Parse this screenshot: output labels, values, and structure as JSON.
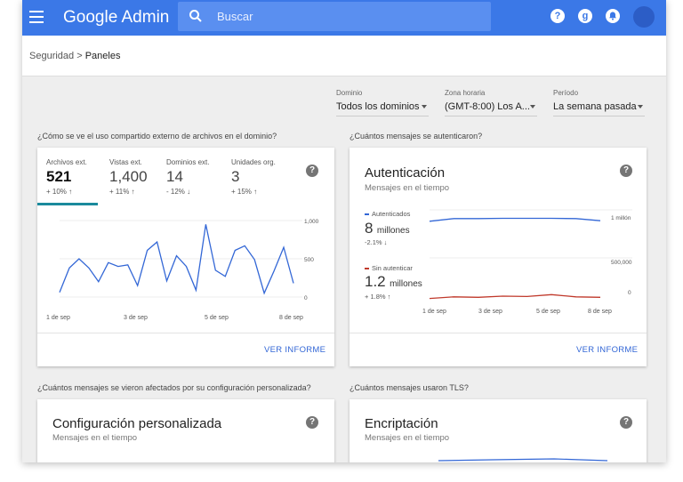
{
  "app": {
    "title": "Google Admin"
  },
  "search": {
    "placeholder": "Buscar"
  },
  "breadcrumb": {
    "parent": "Seguridad",
    "current": "Paneles",
    "separator": ">"
  },
  "filters": [
    {
      "label": "Dominio",
      "value": "Todos los dominios"
    },
    {
      "label": "Zona horaria",
      "value": "(GMT-8:00) Los A..."
    },
    {
      "label": "Período",
      "value": "La semana pasada"
    }
  ],
  "questions": {
    "q1": "¿Cómo se ve el uso compartido externo de archivos en el dominio?",
    "q2": "¿Cuántos mensajes se autenticaron?",
    "q3": "¿Cuántos mensajes se vieron afectados por su configuración personalizada?",
    "q4": "¿Cuántos mensajes usaron TLS?"
  },
  "sharing_card": {
    "tabs": [
      {
        "label": "Archivos ext.",
        "value": "521",
        "change": "+ 10% ↑"
      },
      {
        "label": "Vistas ext.",
        "value": "1,400",
        "change": "+ 11% ↑"
      },
      {
        "label": "Dominios ext.",
        "value": "14",
        "change": "- 12% ↓"
      },
      {
        "label": "Unidades org.",
        "value": "3",
        "change": "+ 15% ↑"
      }
    ],
    "report_label": "VER INFORME",
    "chart_data": {
      "type": "line",
      "x_ticks": [
        "1 de sep",
        "3 de sep",
        "5 de sep",
        "8 de sep"
      ],
      "y_ticks": [
        "1,000",
        "500",
        "0"
      ],
      "ylim": [
        0,
        1000
      ],
      "color": "#3367d6",
      "values": [
        60,
        380,
        500,
        380,
        200,
        450,
        400,
        420,
        150,
        610,
        720,
        210,
        540,
        400,
        90,
        950,
        350,
        270,
        610,
        670,
        490,
        50,
        340,
        650,
        180
      ]
    }
  },
  "auth_card": {
    "title": "Autenticación",
    "subtitle": "Mensajes en el tiempo",
    "report_label": "VER INFORME",
    "series": [
      {
        "name": "Autenticados",
        "value": "8",
        "unit": "millones",
        "change": "-2.1% ↓",
        "color": "#3367d6",
        "axis_top": "1 millón",
        "values": [
          0.92,
          0.97,
          0.97,
          0.975,
          0.975,
          0.975,
          0.97,
          0.93
        ]
      },
      {
        "name": "Sin autenticar",
        "value": "1.2",
        "unit": "millones",
        "change": "+ 1.8% ↑",
        "color": "#c0392b",
        "axis_top": "500,000",
        "axis_bottom": "0",
        "values": [
          40000,
          60000,
          55000,
          70000,
          65000,
          90000,
          60000,
          55000
        ]
      }
    ],
    "x_ticks": [
      "1 de sep",
      "3 de sep",
      "5 de sep",
      "8 de sep"
    ]
  },
  "custom_card": {
    "title": "Configuración personalizada",
    "subtitle": "Mensajes en el tiempo"
  },
  "tls_card": {
    "title": "Encriptación",
    "subtitle": "Mensajes en el tiempo"
  }
}
